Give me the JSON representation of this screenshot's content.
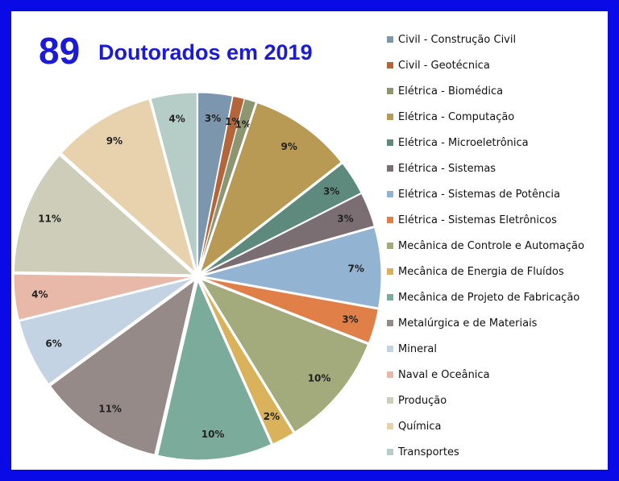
{
  "header": {
    "count": "89",
    "title": "Doutorados em 2019"
  },
  "chart_data": {
    "type": "pie",
    "title": "Doutorados em 2019",
    "categories": [
      "Civil - Construção Civil",
      "Civil - Geotécnica",
      "Elétrica - Biomédica",
      "Elétrica - Computação",
      "Elétrica - Microeletrônica",
      "Elétrica - Sistemas",
      "Elétrica - Sistemas de Potência",
      "Elétrica - Sistemas Eletrônicos",
      "Mecânica de Controle e Automação",
      "Mecânica de Energia de Fluídos",
      "Mecânica de Projeto de Fabricação",
      "Metalúrgica e de Materiais",
      "Mineral",
      "Naval e Oceânica",
      "Produção",
      "Química",
      "Transportes"
    ],
    "values": [
      3,
      1,
      1,
      9,
      3,
      3,
      7,
      3,
      10,
      2,
      10,
      11,
      6,
      4,
      11,
      9,
      4
    ],
    "labels": [
      "3%",
      "1%",
      "1%",
      "9%",
      "3%",
      "3%",
      "7%",
      "3%",
      "10%",
      "2%",
      "10%",
      "11%",
      "6%",
      "4%",
      "11%",
      "9%",
      "4%"
    ],
    "colors": [
      "#7b96ad",
      "#b5653a",
      "#8c9670",
      "#b89a55",
      "#5e8a7e",
      "#7a6e72",
      "#93b3d3",
      "#e07f48",
      "#a3ab7c",
      "#d9b25b",
      "#7aab9b",
      "#968a88",
      "#c4d3e3",
      "#e8b8a8",
      "#cdcdb9",
      "#e8d2ae",
      "#b6ccc7"
    ],
    "legend_position": "right"
  }
}
